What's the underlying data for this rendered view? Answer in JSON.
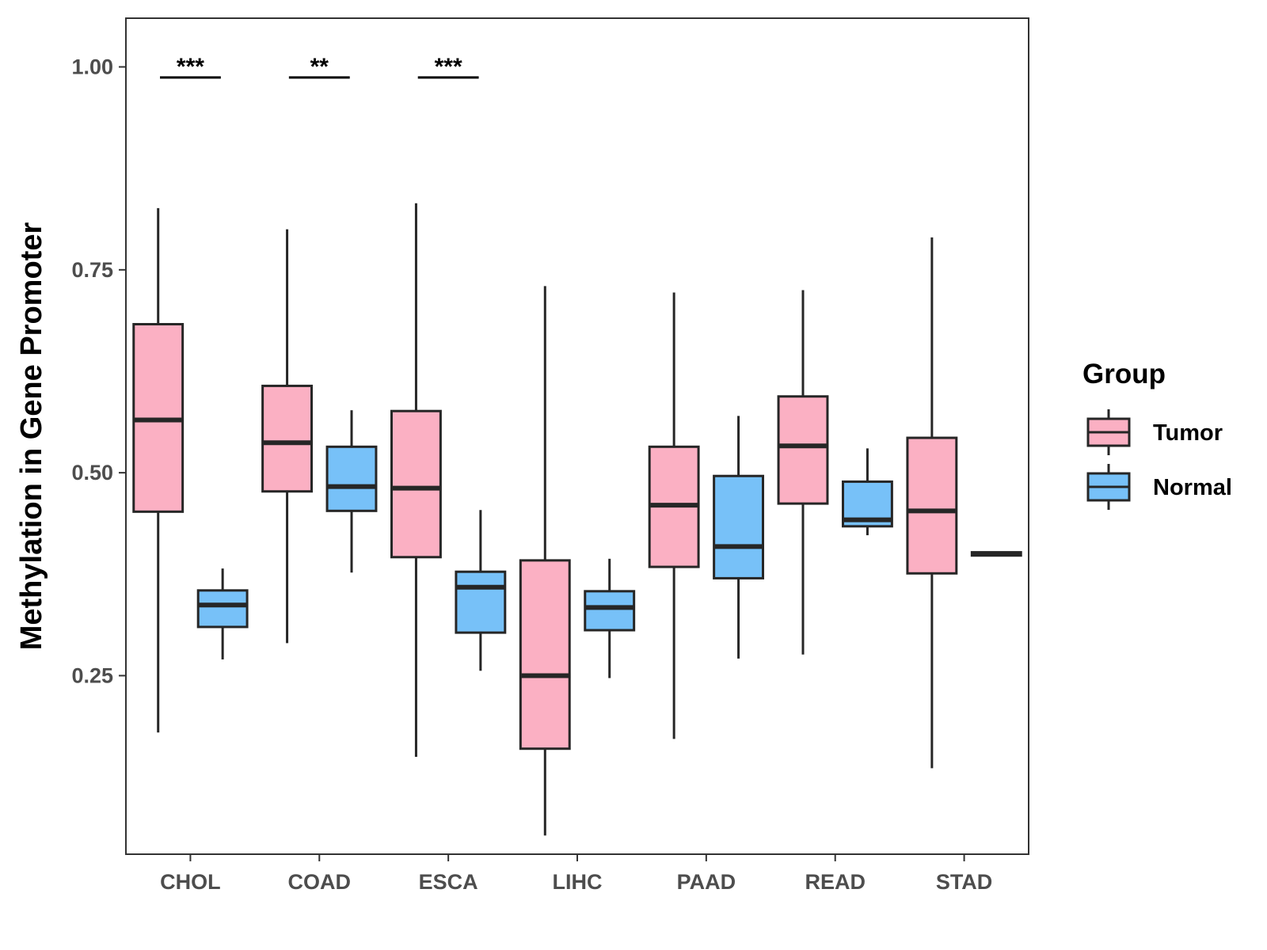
{
  "chart_data": {
    "type": "boxplot",
    "title": "",
    "xlabel": "",
    "ylabel": "Methylation in Gene Promoter",
    "ylim": [
      0.03,
      1.06
    ],
    "yticks": [
      0.25,
      0.5,
      0.75,
      1.0
    ],
    "ytick_labels": [
      "0.25",
      "0.50",
      "0.75",
      "1.00"
    ],
    "grid": false,
    "categories": [
      "CHOL",
      "COAD",
      "ESCA",
      "LIHC",
      "PAAD",
      "READ",
      "STAD"
    ],
    "legend": {
      "title": "Group",
      "position": "right",
      "entries": [
        {
          "name": "Tumor",
          "color": "#FBB0C3"
        },
        {
          "name": "Normal",
          "color": "#77C1F8"
        }
      ]
    },
    "series": [
      {
        "name": "Tumor",
        "color": "#FBB0C3",
        "boxes": [
          {
            "category": "CHOL",
            "min": 0.18,
            "q1": 0.452,
            "median": 0.565,
            "q3": 0.683,
            "max": 0.826
          },
          {
            "category": "COAD",
            "min": 0.29,
            "q1": 0.477,
            "median": 0.537,
            "q3": 0.607,
            "max": 0.8
          },
          {
            "category": "ESCA",
            "min": 0.15,
            "q1": 0.396,
            "median": 0.481,
            "q3": 0.576,
            "max": 0.832
          },
          {
            "category": "LIHC",
            "min": 0.053,
            "q1": 0.16,
            "median": 0.25,
            "q3": 0.392,
            "max": 0.73
          },
          {
            "category": "PAAD",
            "min": 0.172,
            "q1": 0.384,
            "median": 0.46,
            "q3": 0.532,
            "max": 0.722
          },
          {
            "category": "READ",
            "min": 0.276,
            "q1": 0.462,
            "median": 0.533,
            "q3": 0.594,
            "max": 0.725
          },
          {
            "category": "STAD",
            "min": 0.136,
            "q1": 0.376,
            "median": 0.453,
            "q3": 0.543,
            "max": 0.79
          }
        ]
      },
      {
        "name": "Normal",
        "color": "#77C1F8",
        "boxes": [
          {
            "category": "CHOL",
            "min": 0.27,
            "q1": 0.31,
            "median": 0.337,
            "q3": 0.355,
            "max": 0.382
          },
          {
            "category": "COAD",
            "min": 0.377,
            "q1": 0.453,
            "median": 0.483,
            "q3": 0.532,
            "max": 0.577
          },
          {
            "category": "ESCA",
            "min": 0.256,
            "q1": 0.303,
            "median": 0.359,
            "q3": 0.378,
            "max": 0.454
          },
          {
            "category": "LIHC",
            "min": 0.247,
            "q1": 0.306,
            "median": 0.334,
            "q3": 0.354,
            "max": 0.394
          },
          {
            "category": "PAAD",
            "min": 0.271,
            "q1": 0.37,
            "median": 0.409,
            "q3": 0.496,
            "max": 0.57
          },
          {
            "category": "READ",
            "min": 0.423,
            "q1": 0.434,
            "median": 0.442,
            "q3": 0.489,
            "max": 0.53
          },
          {
            "category": "STAD",
            "min": 0.398,
            "q1": 0.398,
            "median": 0.4,
            "q3": 0.402,
            "max": 0.402
          }
        ]
      }
    ],
    "annotations": [
      {
        "category": "CHOL",
        "text": "***",
        "y": 0.987
      },
      {
        "category": "COAD",
        "text": "**",
        "y": 0.987
      },
      {
        "category": "ESCA",
        "text": "***",
        "y": 0.987
      }
    ]
  }
}
